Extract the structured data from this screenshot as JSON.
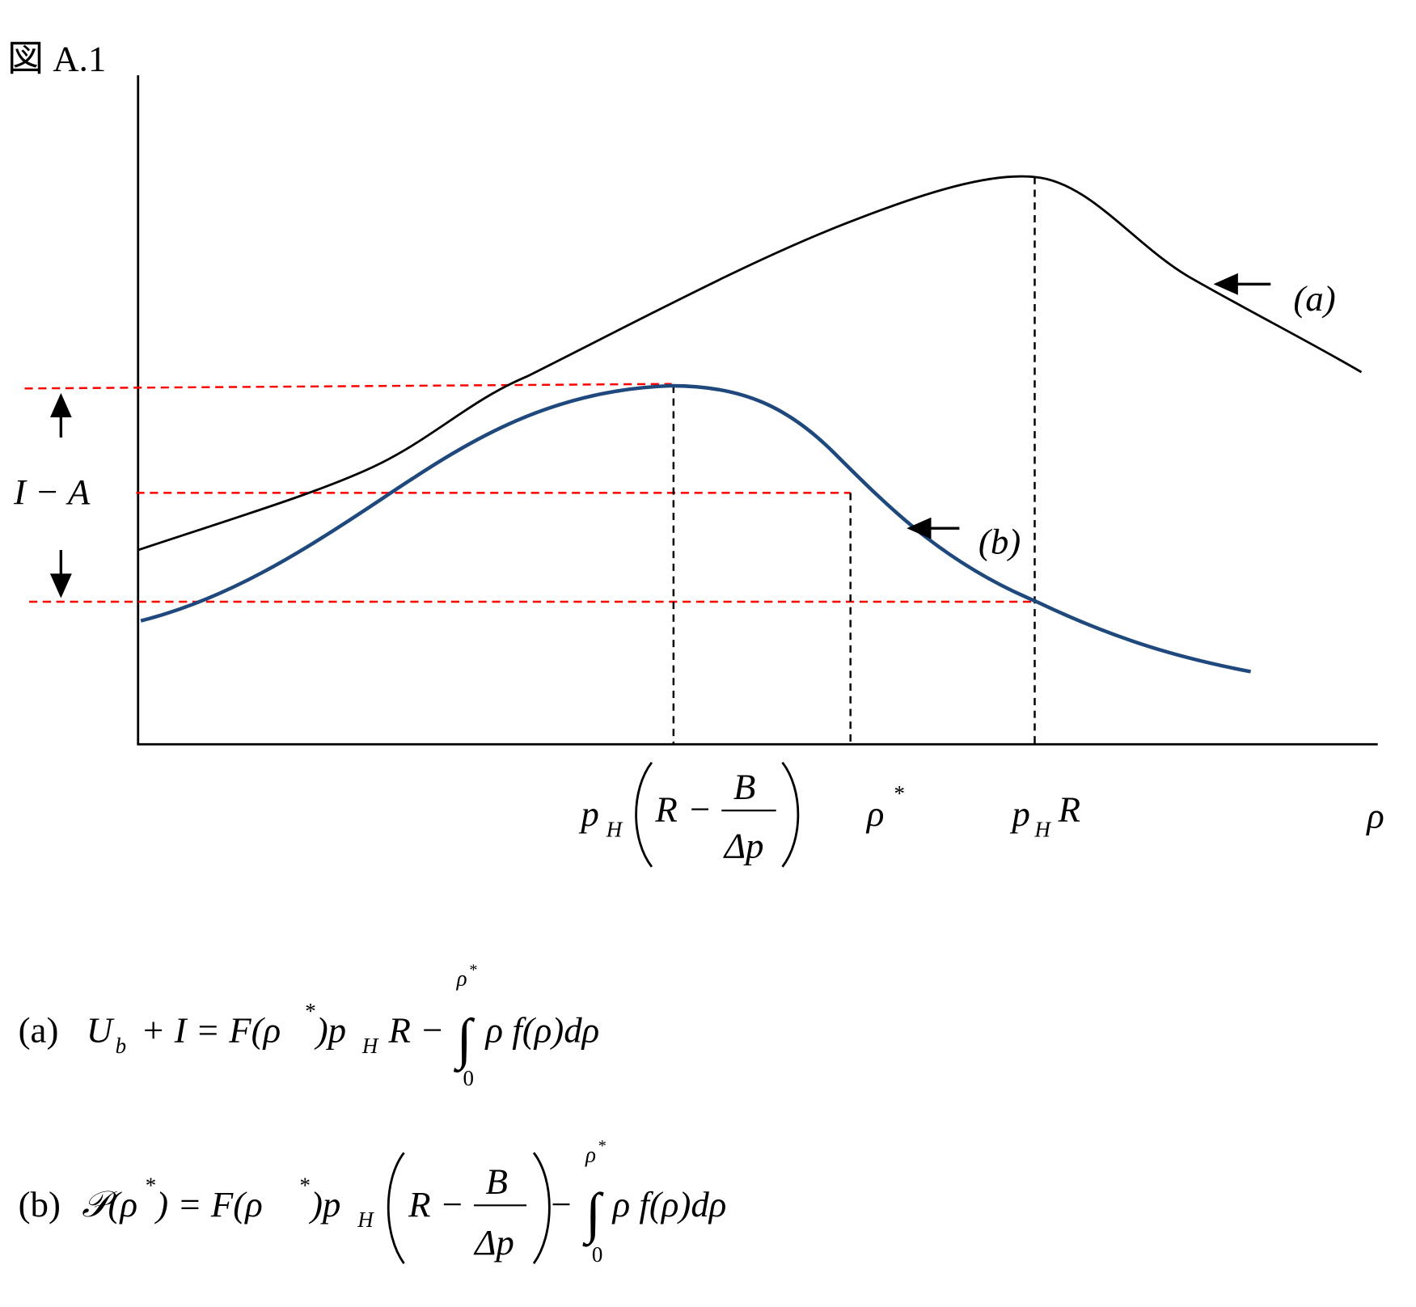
{
  "title": "図 A.1",
  "y_label": "I − A",
  "curve_a_label": "(a)",
  "curve_b_label": "(b)",
  "x_labels": {
    "first": {
      "p": "p",
      "H": "H",
      "R": "R",
      "minus": "−",
      "B": "B",
      "dp": "Δp"
    },
    "second": {
      "rho": "ρ",
      "star": "*"
    },
    "third": {
      "p": "p",
      "H": "H",
      "R": "R"
    },
    "fourth": "ρ"
  },
  "equation_a": {
    "label": "(a)",
    "U": "U",
    "b": "b",
    "mid": "+ I = F(ρ",
    "star1": "*",
    "p": ")p",
    "H": "H",
    "R": "R −",
    "integral": "∫",
    "upper": "ρ",
    "upper_star": "*",
    "lower": "0",
    "tail": "ρ f(ρ)dρ"
  },
  "equation_b": {
    "label": "(b)",
    "P": "𝒫(ρ",
    "star1": "*",
    "mid": ") = F(ρ",
    "star2": "*",
    "p": ")p",
    "H": "H",
    "R": "R −",
    "B": "B",
    "dp": "Δp",
    "minus": "−",
    "integral": "∫",
    "upper": "ρ",
    "upper_star": "*",
    "lower": "0",
    "tail": "ρ f(ρ)dρ"
  }
}
